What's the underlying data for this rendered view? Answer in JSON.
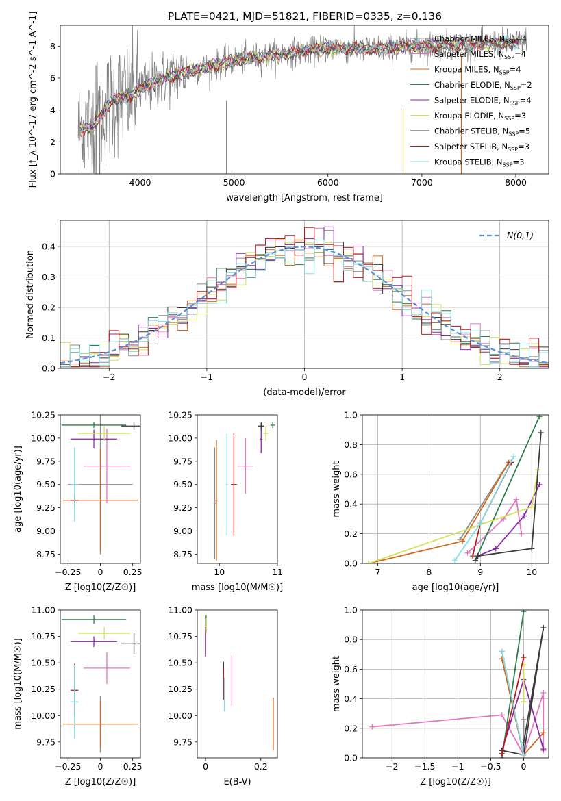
{
  "figure": {
    "title": "PLATE=0421, MJD=51821, FIBERID=0335, z=0.136"
  },
  "colors": {
    "Chabrier MILES": "#8c8c8c",
    "Salpeter MILES": "#e377c2",
    "Kroupa MILES": "#d2691e",
    "Chabrier ELODIE": "#2e7d4f",
    "Salpeter ELODIE": "#8e24aa",
    "Kroupa ELODIE": "#d4e157",
    "Chabrier STELIB": "#3a3a3a",
    "Salpeter STELIB": "#b71c1c",
    "Kroupa STELIB": "#80deea",
    "gaussian": "#5b8ed6"
  },
  "chart_data": [
    {
      "id": "spectrum",
      "type": "line",
      "xlabel": "wavelength [Angstrom, rest frame]",
      "ylabel": "Flux [f_λ 10^-17 erg cm^-2 s^-1 A^-1]",
      "xlim": [
        3150,
        8350
      ],
      "ylim": [
        0,
        9.3
      ],
      "xticks": [
        4000,
        5000,
        6000,
        7000,
        8000
      ],
      "yticks": [
        0,
        2,
        4,
        6,
        8
      ],
      "grid": false,
      "legend_position": "upper-right",
      "legend": [
        {
          "model": "Chabrier MILES",
          "nssp": "4"
        },
        {
          "model": "Salpeter MILES",
          "nssp": "4"
        },
        {
          "model": "Kroupa MILES",
          "nssp": "4"
        },
        {
          "model": "Chabrier ELODIE",
          "nssp": "2"
        },
        {
          "model": "Salpeter ELODIE",
          "nssp": "4"
        },
        {
          "model": "Kroupa ELODIE",
          "nssp": "3"
        },
        {
          "model": "Chabrier STELIB",
          "nssp": "5"
        },
        {
          "model": "Salpeter STELIB",
          "nssp": "3"
        },
        {
          "model": "Kroupa STELIB",
          "nssp": "3"
        }
      ],
      "continuum": {
        "x": [
          3350,
          3500,
          3700,
          3900,
          4000,
          4200,
          4500,
          5000,
          5500,
          6000,
          6500,
          7000,
          7500,
          8000,
          8100
        ],
        "y": [
          2.8,
          3.0,
          4.6,
          4.9,
          5.3,
          5.9,
          6.4,
          7.1,
          7.5,
          7.9,
          7.8,
          8.0,
          8.1,
          8.2,
          8.3
        ]
      }
    },
    {
      "id": "residuals",
      "type": "line",
      "xlabel": "(data-model)/error",
      "ylabel": "Normed distribution",
      "xlim": [
        -2.5,
        2.5
      ],
      "ylim": [
        0,
        0.485
      ],
      "xticks": [
        -2,
        -1,
        0,
        1,
        2
      ],
      "yticks": [
        0.0,
        0.1,
        0.2,
        0.3,
        0.4
      ],
      "grid": true,
      "legend_position": "upper-right",
      "legend_label": "N(0,1)",
      "gaussian": {
        "mu": 0,
        "sigma": 1
      }
    },
    {
      "id": "age_vs_z",
      "type": "scatter",
      "xlabel": "Z [log10(Z/Z☉)]",
      "ylabel": "age  [log10(age/yr)]",
      "xlim": [
        -0.31,
        0.31
      ],
      "ylim": [
        8.65,
        10.25
      ],
      "xticks": [
        -0.25,
        0.0,
        0.25
      ],
      "yticks": [
        8.75,
        9.0,
        9.25,
        9.5,
        9.75,
        10.0,
        10.25
      ],
      "grid": false,
      "points": [
        {
          "model": "Chabrier MILES",
          "x": 0.0,
          "y": 9.5,
          "xerr": 0.25,
          "yerr": 0.75
        },
        {
          "model": "Salpeter MILES",
          "x": 0.05,
          "y": 9.7,
          "xerr": 0.18,
          "yerr": 0.4
        },
        {
          "model": "Kroupa MILES",
          "x": 0.0,
          "y": 9.33,
          "xerr": 0.29,
          "yerr": 0.55
        },
        {
          "model": "Chabrier ELODIE",
          "x": -0.05,
          "y": 10.14,
          "xerr": 0.25,
          "yerr": 0.03
        },
        {
          "model": "Salpeter ELODIE",
          "x": -0.05,
          "y": 9.99,
          "xerr": 0.18,
          "yerr": 0.1
        },
        {
          "model": "Kroupa ELODIE",
          "x": 0.03,
          "y": 10.05,
          "xerr": 0.2,
          "yerr": 0.08
        },
        {
          "model": "Chabrier STELIB",
          "x": 0.26,
          "y": 10.13,
          "xerr": 0.1,
          "yerr": 0.04
        },
        {
          "model": "Salpeter STELIB",
          "x": -0.2,
          "y": 9.33,
          "xerr": 0.03,
          "yerr": 0.06
        },
        {
          "model": "Kroupa STELIB",
          "x": -0.2,
          "y": 9.5,
          "xerr": 0.03,
          "yerr": 0.4
        }
      ]
    },
    {
      "id": "age_vs_mass",
      "type": "scatter",
      "xlabel": "mass [log10(M/M☉)]",
      "ylabel": "",
      "xlim": [
        9.62,
        11.0
      ],
      "ylim": [
        8.65,
        10.25
      ],
      "xticks": [
        10,
        11
      ],
      "yticks": [
        8.75,
        9.0,
        9.25,
        9.5,
        9.75,
        10.0,
        10.25
      ],
      "grid": false,
      "points": [
        {
          "model": "Chabrier MILES",
          "x": 9.92,
          "y": 9.3,
          "xerr": 0.02,
          "yerr": 0.6
        },
        {
          "model": "Salpeter MILES",
          "x": 10.45,
          "y": 9.7,
          "xerr": 0.14,
          "yerr": 0.3
        },
        {
          "model": "Kroupa MILES",
          "x": 9.95,
          "y": 9.33,
          "xerr": 0.02,
          "yerr": 0.65
        },
        {
          "model": "Chabrier ELODIE",
          "x": 10.92,
          "y": 10.14,
          "xerr": 0.04,
          "yerr": 0.03
        },
        {
          "model": "Salpeter ELODIE",
          "x": 10.72,
          "y": 9.99,
          "xerr": 0.02,
          "yerr": 0.15
        },
        {
          "model": "Kroupa ELODIE",
          "x": 10.8,
          "y": 10.05,
          "xerr": 0.04,
          "yerr": 0.08
        },
        {
          "model": "Chabrier STELIB",
          "x": 10.72,
          "y": 10.13,
          "xerr": 0.05,
          "yerr": 0.04
        },
        {
          "model": "Salpeter STELIB",
          "x": 10.25,
          "y": 9.5,
          "xerr": 0.05,
          "yerr": 0.55
        },
        {
          "model": "Kroupa STELIB",
          "x": 10.13,
          "y": 9.5,
          "xerr": 0.02,
          "yerr": 0.55
        }
      ]
    },
    {
      "id": "massweight_vs_age",
      "type": "line",
      "xlabel": "age  [log10(age/yr)]",
      "ylabel": "mass weight",
      "xlim": [
        6.7,
        10.33
      ],
      "ylim": [
        0,
        1.0
      ],
      "xticks": [
        7,
        8,
        9,
        10
      ],
      "yticks": [
        0.0,
        0.2,
        0.4,
        0.6,
        0.8,
        1.0
      ],
      "grid": true,
      "series": [
        {
          "model": "Chabrier MILES",
          "x": [
            8.6,
            9.4,
            9.55
          ],
          "y": [
            0.16,
            0.6,
            0.68
          ]
        },
        {
          "model": "Salpeter MILES",
          "x": [
            8.75,
            9.45,
            9.7,
            9.8
          ],
          "y": [
            0.07,
            0.3,
            0.43,
            0.2
          ]
        },
        {
          "model": "Kroupa MILES",
          "x": [
            6.82,
            8.65,
            9.55
          ],
          "y": [
            0.0,
            0.15,
            0.68
          ]
        },
        {
          "model": "Chabrier ELODIE",
          "x": [
            8.9,
            10.15
          ],
          "y": [
            0.02,
            0.99
          ]
        },
        {
          "model": "Salpeter ELODIE",
          "x": [
            8.95,
            9.3,
            9.85,
            10.15
          ],
          "y": [
            0.05,
            0.1,
            0.32,
            0.53
          ]
        },
        {
          "model": "Kroupa ELODIE",
          "x": [
            6.82,
            10.0,
            10.12
          ],
          "y": [
            0.0,
            0.38,
            0.63
          ]
        },
        {
          "model": "Chabrier STELIB",
          "x": [
            8.9,
            8.95,
            10.0,
            10.18
          ],
          "y": [
            0.02,
            0.05,
            0.1,
            0.88
          ]
        },
        {
          "model": "Salpeter STELIB",
          "x": [
            8.85,
            9.0,
            9.6
          ],
          "y": [
            0.05,
            0.27,
            0.68
          ]
        },
        {
          "model": "Kroupa STELIB",
          "x": [
            8.5,
            9.0,
            9.65
          ],
          "y": [
            0.02,
            0.27,
            0.72
          ]
        }
      ]
    },
    {
      "id": "mass_vs_z",
      "type": "scatter",
      "xlabel": "Z [log10(Z/Z☉)]",
      "ylabel": "mass [log10(M/M☉)]",
      "xlim": [
        -0.31,
        0.31
      ],
      "ylim": [
        9.6,
        11.0
      ],
      "xticks": [
        -0.25,
        0.0,
        0.25
      ],
      "yticks": [
        9.75,
        10.0,
        10.25,
        10.5,
        10.75,
        11.0
      ],
      "grid": false,
      "points": [
        {
          "model": "Chabrier MILES",
          "x": 0.0,
          "y": 9.92,
          "xerr": 0.25,
          "yerr": 0.27
        },
        {
          "model": "Salpeter MILES",
          "x": 0.05,
          "y": 10.45,
          "xerr": 0.18,
          "yerr": 0.15
        },
        {
          "model": "Kroupa MILES",
          "x": 0.0,
          "y": 9.92,
          "xerr": 0.29,
          "yerr": 0.22
        },
        {
          "model": "Chabrier ELODIE",
          "x": -0.05,
          "y": 10.91,
          "xerr": 0.25,
          "yerr": 0.04
        },
        {
          "model": "Salpeter ELODIE",
          "x": -0.05,
          "y": 10.7,
          "xerr": 0.18,
          "yerr": 0.05
        },
        {
          "model": "Kroupa ELODIE",
          "x": 0.03,
          "y": 10.78,
          "xerr": 0.2,
          "yerr": 0.06
        },
        {
          "model": "Chabrier STELIB",
          "x": 0.26,
          "y": 10.68,
          "xerr": 0.1,
          "yerr": 0.1
        },
        {
          "model": "Salpeter STELIB",
          "x": -0.2,
          "y": 10.24,
          "xerr": 0.03,
          "yerr": 0.25
        },
        {
          "model": "Kroupa STELIB",
          "x": -0.2,
          "y": 10.13,
          "xerr": 0.03,
          "yerr": 0.35
        }
      ]
    },
    {
      "id": "mass_vs_ebv",
      "type": "scatter",
      "xlabel": "E(B-V)",
      "ylabel": "",
      "xlim": [
        -0.03,
        0.26
      ],
      "ylim": [
        9.6,
        11.0
      ],
      "xticks": [
        0.0,
        0.2
      ],
      "yticks": [
        9.75,
        10.0,
        10.25,
        10.5,
        10.75,
        11.0
      ],
      "grid": false,
      "points": [
        {
          "model": "Chabrier MILES",
          "x": 0.0,
          "y": 10.68,
          "xerr": 0.0,
          "yerr": 0.1
        },
        {
          "model": "Salpeter MILES",
          "x": 0.095,
          "y": 10.33,
          "xerr": 0.0,
          "yerr": 0.24
        },
        {
          "model": "Kroupa MILES",
          "x": 0.245,
          "y": 9.92,
          "xerr": 0.0,
          "yerr": 0.25
        },
        {
          "model": "Chabrier ELODIE",
          "x": 0.002,
          "y": 10.9,
          "xerr": 0.0,
          "yerr": 0.05
        },
        {
          "model": "Salpeter ELODIE",
          "x": 0.0,
          "y": 10.7,
          "xerr": 0.0,
          "yerr": 0.14
        },
        {
          "model": "Kroupa ELODIE",
          "x": 0.003,
          "y": 10.85,
          "xerr": 0.0,
          "yerr": 0.07
        },
        {
          "model": "Chabrier STELIB",
          "x": 0.065,
          "y": 10.35,
          "xerr": 0.0,
          "yerr": 0.16
        },
        {
          "model": "Salpeter STELIB",
          "x": 0.065,
          "y": 10.3,
          "xerr": 0.0,
          "yerr": 0.15
        },
        {
          "model": "Kroupa STELIB",
          "x": 0.068,
          "y": 10.2,
          "xerr": 0.0,
          "yerr": 0.16
        }
      ]
    },
    {
      "id": "massweight_vs_z",
      "type": "line",
      "xlabel": "Z [log10(Z/Z☉)]",
      "ylabel": "mass weight",
      "xlim": [
        -2.45,
        0.38
      ],
      "ylim": [
        0,
        1.0
      ],
      "xticks": [
        -2.0,
        -1.5,
        -1.0,
        -0.5,
        0.0
      ],
      "yticks": [
        0.0,
        0.2,
        0.4,
        0.6,
        0.8,
        1.0
      ],
      "grid": true,
      "series": [
        {
          "model": "Chabrier MILES",
          "x": [
            -0.33,
            0.0,
            0.0
          ],
          "y": [
            0.72,
            0.02,
            0.26
          ]
        },
        {
          "model": "Salpeter MILES",
          "x": [
            -2.3,
            -0.33,
            0.0,
            0.3,
            0.3
          ],
          "y": [
            0.21,
            0.29,
            0.02,
            0.44,
            0.05
          ]
        },
        {
          "model": "Kroupa MILES",
          "x": [
            -0.33,
            0.0,
            0.3
          ],
          "y": [
            0.67,
            0.02,
            0.17
          ]
        },
        {
          "model": "Chabrier ELODIE",
          "x": [
            -0.33,
            0.0
          ],
          "y": [
            0.0,
            0.99
          ]
        },
        {
          "model": "Salpeter ELODIE",
          "x": [
            -0.33,
            0.0,
            0.3
          ],
          "y": [
            0.05,
            0.53,
            0.06
          ]
        },
        {
          "model": "Kroupa ELODIE",
          "x": [
            0.0,
            0.0
          ],
          "y": [
            0.38,
            0.63
          ]
        },
        {
          "model": "Chabrier STELIB",
          "x": [
            -0.33,
            0.0,
            0.3,
            0.0
          ],
          "y": [
            0.05,
            0.02,
            0.88,
            0.1
          ]
        },
        {
          "model": "Salpeter STELIB",
          "x": [
            -0.33,
            0.0
          ],
          "y": [
            0.03,
            0.68
          ]
        },
        {
          "model": "Kroupa STELIB",
          "x": [
            -0.33,
            0.0
          ],
          "y": [
            0.72,
            0.02
          ]
        }
      ]
    }
  ]
}
